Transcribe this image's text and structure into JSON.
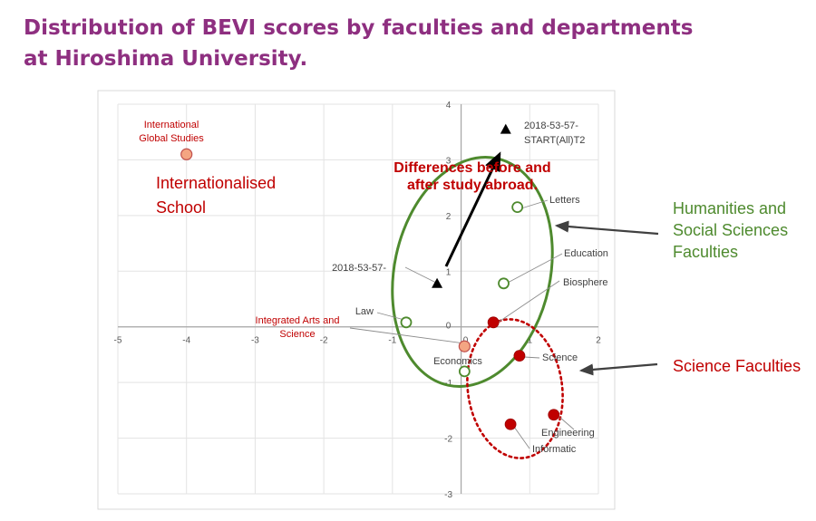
{
  "title": {
    "line1": "Distribution of BEVI scores by faculties and departments",
    "line2": "at Hiroshima University."
  },
  "colors": {
    "title": "#8e2f80",
    "red": "#c00000",
    "green": "#4e8a2e",
    "orange": "#f4a582",
    "dark_red": "#c00000",
    "gray_text": "#404040"
  },
  "annotations": {
    "internationalised": [
      "Internationalised",
      "School"
    ],
    "differences": [
      "Differences before and",
      "after study abroad."
    ],
    "humanities": [
      "Humanities and",
      "Social Sciences",
      "Faculties"
    ],
    "science_faculties": "Science Faculties"
  },
  "chart_data": {
    "type": "scatter",
    "xlim": [
      -5,
      2
    ],
    "ylim": [
      -3,
      4
    ],
    "x_ticks": [
      "-5",
      "-4",
      "-3",
      "-2",
      "-1",
      "0",
      "1",
      "2"
    ],
    "y_ticks": [
      "-3",
      "-2",
      "-1",
      "0",
      "1",
      "2",
      "3",
      "4"
    ],
    "grid": true,
    "points": [
      {
        "label": [
          "International",
          "Global Studies"
        ],
        "x": -4.0,
        "y": 3.1,
        "marker": "filled-circle-orange"
      },
      {
        "label": [
          "Integrated Arts and",
          "Science"
        ],
        "x": 0.05,
        "y": -0.35,
        "marker": "filled-circle-orange"
      },
      {
        "label": [
          "Law"
        ],
        "x": -0.8,
        "y": 0.08,
        "marker": "open-circle-green"
      },
      {
        "label": [
          "Economics"
        ],
        "x": 0.05,
        "y": -0.8,
        "marker": "open-circle-green"
      },
      {
        "label": [
          "Letters"
        ],
        "x": 0.82,
        "y": 2.15,
        "marker": "open-circle-green"
      },
      {
        "label": [
          "Education"
        ],
        "x": 0.62,
        "y": 0.78,
        "marker": "open-circle-green"
      },
      {
        "label": [
          "Biosphere"
        ],
        "x": 0.47,
        "y": 0.08,
        "marker": "filled-circle-red"
      },
      {
        "label": [
          "Science"
        ],
        "x": 0.85,
        "y": -0.52,
        "marker": "filled-circle-red"
      },
      {
        "label": [
          "Engineering"
        ],
        "x": 1.35,
        "y": -1.58,
        "marker": "filled-circle-red"
      },
      {
        "label": [
          "Informatic"
        ],
        "x": 0.72,
        "y": -1.75,
        "marker": "filled-circle-red"
      },
      {
        "label": [
          "2018-53-57-"
        ],
        "x": -0.35,
        "y": 0.78,
        "marker": "triangle"
      },
      {
        "label": [
          "2018-53-57-",
          "START(All)T2"
        ],
        "x": 0.65,
        "y": 3.55,
        "marker": "triangle"
      }
    ]
  }
}
